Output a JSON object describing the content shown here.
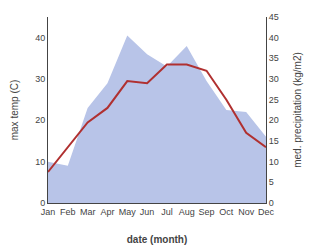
{
  "chart_data": {
    "type": "line",
    "xlabel": "date (month)",
    "ylabel": "max temp (C)",
    "y2label": "med. precipitation (kg/m2)",
    "categories": [
      "Jan",
      "Feb",
      "Mar",
      "Apr",
      "May",
      "Jun",
      "Jul",
      "Aug",
      "Sep",
      "Oct",
      "Nov",
      "Dec"
    ],
    "series": [
      {
        "type": "area",
        "color": "#b8c4e8",
        "axis": "y2",
        "values": [
          10.0,
          9.0,
          23.0,
          29.0,
          40.5,
          36.0,
          33.0,
          38.0,
          29.5,
          22.5,
          22.0,
          16.0
        ]
      },
      {
        "type": "line",
        "color": "#b03030",
        "values": [
          7.5,
          13.5,
          19.5,
          23.0,
          29.5,
          29.0,
          33.5,
          33.5,
          32.0,
          25.0,
          17.0,
          13.5
        ]
      }
    ],
    "ylim": [
      0,
      45
    ],
    "yticks": [
      0,
      10,
      20,
      30,
      40
    ],
    "y2lim": [
      0,
      45
    ],
    "y2ticks": [
      0,
      5,
      10,
      15,
      20,
      25,
      30,
      35,
      40,
      45
    ],
    "grid": false
  }
}
